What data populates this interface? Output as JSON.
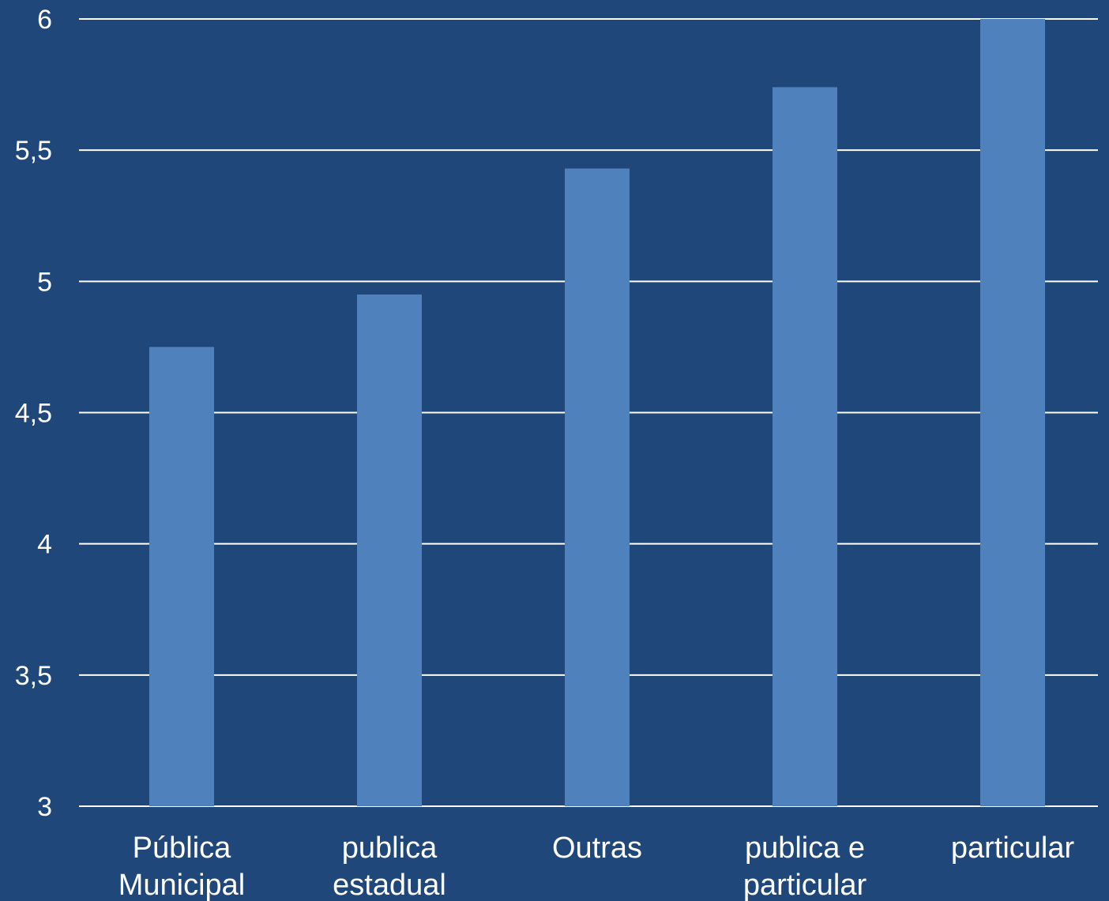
{
  "colors": {
    "background": "#20477a",
    "bar": "#4f81bd",
    "grid": "#ffffff",
    "text": "#ffffff"
  },
  "chart_data": {
    "type": "bar",
    "title": "",
    "xlabel": "",
    "ylabel": "",
    "categories": [
      [
        "Pública",
        "Municipal"
      ],
      [
        "publica",
        "estadual"
      ],
      [
        "Outras"
      ],
      [
        "publica e",
        "particular"
      ],
      [
        "particular"
      ]
    ],
    "values": [
      4.75,
      4.95,
      5.43,
      5.74,
      6.0
    ],
    "ylim": [
      3,
      6
    ],
    "yticks": [
      3,
      3.5,
      4,
      4.5,
      5,
      5.5,
      6
    ],
    "ytick_labels": [
      "3",
      "3,5",
      "4",
      "4,5",
      "5",
      "5,5",
      "6"
    ],
    "grid": true,
    "legend": "none"
  }
}
